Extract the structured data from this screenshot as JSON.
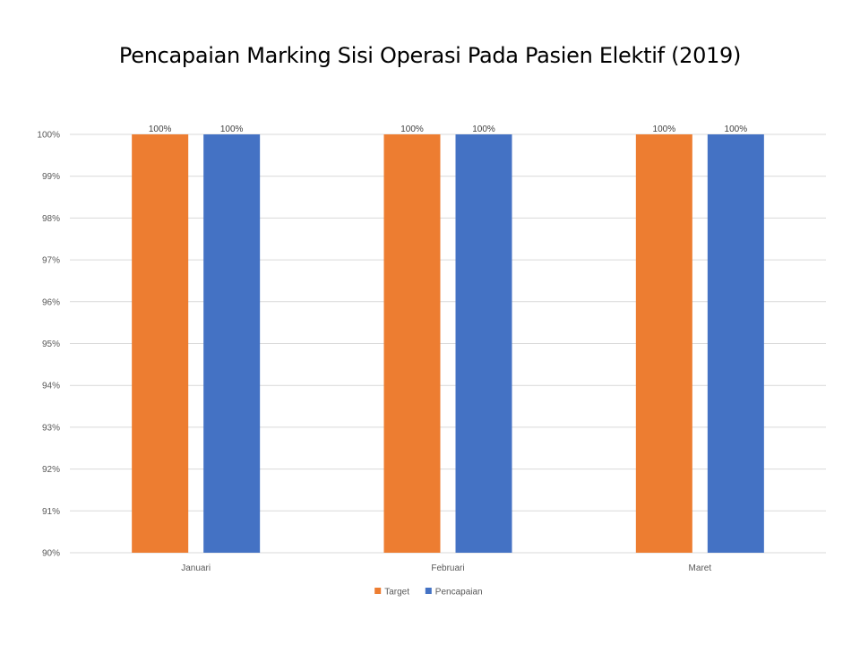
{
  "chart_data": {
    "type": "bar",
    "title": "Pencapaian Marking Sisi Operasi Pada Pasien Elektif (2019)",
    "xlabel": "",
    "ylabel": "",
    "categories": [
      "Januari",
      "Februari",
      "Maret"
    ],
    "series": [
      {
        "name": "Target",
        "values": [
          100,
          100,
          100
        ],
        "color": "#ED7D31"
      },
      {
        "name": "Pencapaian",
        "values": [
          100,
          100,
          100
        ],
        "color": "#4472C4"
      }
    ],
    "data_labels": [
      [
        "100%",
        "100%",
        "100%"
      ],
      [
        "100%",
        "100%",
        "100%"
      ]
    ],
    "ylim": [
      90,
      100
    ],
    "y_ticks": [
      "90%",
      "91%",
      "92%",
      "93%",
      "94%",
      "95%",
      "96%",
      "97%",
      "98%",
      "99%",
      "100%"
    ],
    "grid": true,
    "legend_position": "bottom"
  }
}
